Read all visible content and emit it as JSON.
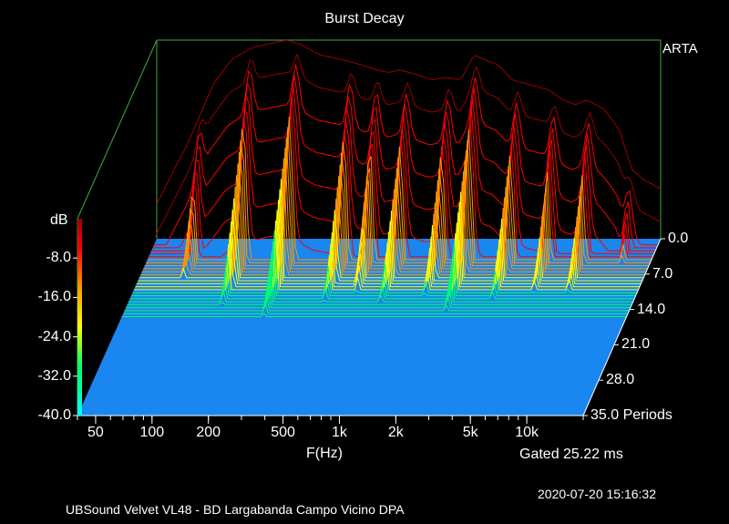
{
  "chart_data": {
    "type": "waterfall",
    "title": "Burst Decay",
    "watermark": "ARTA",
    "x_axis": {
      "label": "F(Hz)",
      "scale": "log",
      "range": [
        40,
        20000
      ],
      "tick_labels": [
        {
          "value": 50,
          "label": "50"
        },
        {
          "value": 100,
          "label": "100"
        },
        {
          "value": 200,
          "label": "200"
        },
        {
          "value": 500,
          "label": "500"
        },
        {
          "value": 1000,
          "label": "1k"
        },
        {
          "value": 2000,
          "label": "2k"
        },
        {
          "value": 5000,
          "label": "5k"
        },
        {
          "value": 10000,
          "label": "10k"
        }
      ]
    },
    "z_axis": {
      "label": "Periods",
      "range": [
        0,
        35
      ],
      "tick_labels": [
        {
          "value": 0,
          "label": "0.0"
        },
        {
          "value": 7,
          "label": "7.0"
        },
        {
          "value": 14,
          "label": "14.0"
        },
        {
          "value": 21,
          "label": "21.0"
        },
        {
          "value": 28,
          "label": "28.0"
        },
        {
          "value": 35,
          "label": "35.0"
        }
      ]
    },
    "y_axis": {
      "label": "dB",
      "range": [
        -40,
        0
      ],
      "tick_labels": [
        {
          "value": -8,
          "label": "-8.0"
        },
        {
          "value": -16,
          "label": "-16.0"
        },
        {
          "value": -24,
          "label": "-24.0"
        },
        {
          "value": -32,
          "label": "-32.0"
        },
        {
          "value": -40,
          "label": "-40.0"
        }
      ]
    },
    "initial_response": {
      "freq": [
        40,
        60,
        80,
        100,
        130,
        170,
        200,
        240,
        300,
        400,
        500,
        600,
        700,
        800,
        1000,
        1200,
        1400,
        1700,
        2000,
        2300,
        2700,
        3200,
        4000,
        5000,
        6000,
        7000,
        8000,
        10000,
        12000,
        14000,
        16000,
        18000,
        20000
      ],
      "level_db": [
        -33,
        -20,
        -9,
        -4,
        -1.5,
        -0.5,
        0,
        -1,
        -3,
        -4,
        -5,
        -6,
        -6.5,
        -6,
        -7,
        -8,
        -7.5,
        -8,
        -3,
        -4,
        -5,
        -8,
        -9,
        -10,
        -12,
        -13,
        -12,
        -14,
        -18,
        -26,
        -28,
        -29,
        -30
      ]
    },
    "resonances_hz": [
      70,
      130,
      230,
      450,
      620,
      900,
      1500,
      2100,
      3500,
      5500,
      8500,
      14000
    ],
    "gated": "Gated 25.22 ms",
    "timestamp": "2020-07-20  15:16:32",
    "footer": "UBSound Velvet VL48 - BD Largabanda Campo Vicino      DPA",
    "colors": {
      "background": "#000000",
      "floor": "#1a86f0",
      "box": "#3cae3c",
      "text": "#ffffff",
      "colorbar": [
        "#00ffff",
        "#00ff66",
        "#ffff00",
        "#ff9900",
        "#ff0000",
        "#990000"
      ]
    }
  }
}
